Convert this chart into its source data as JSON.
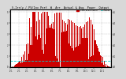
{
  "title": "S.Irr/y / PV/Inv Perf  W  Arr  Actual & Avg  Power  Output",
  "legend_actual": "Actual power output",
  "legend_avg": "Average",
  "background_color": "#d8d8d8",
  "plot_bg_color": "#ffffff",
  "bar_color": "#cc0000",
  "avg_line_color": "#00cccc",
  "avg_line_color2": "#cc0000",
  "figsize": [
    1.6,
    1.0
  ],
  "dpi": 100,
  "avg_value": 0.11,
  "ylim_max": 1.05,
  "num_points": 365
}
